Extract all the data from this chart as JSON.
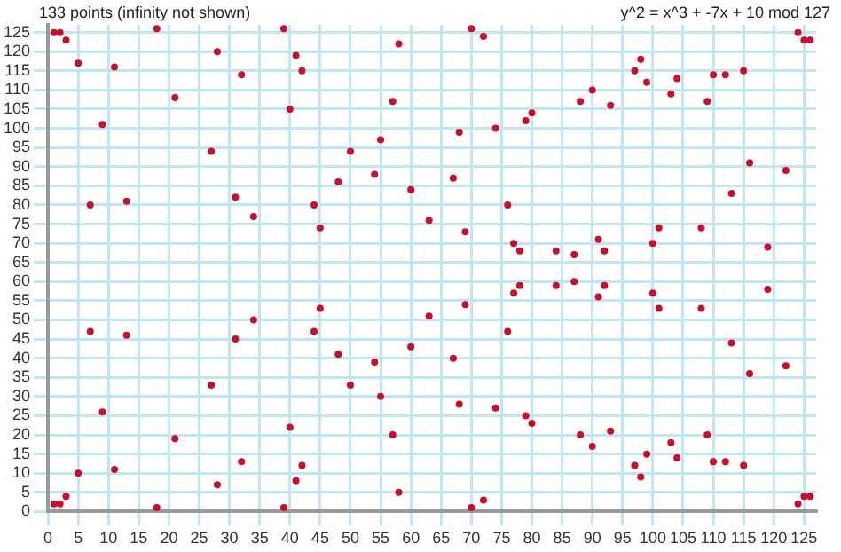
{
  "chart_data": {
    "type": "scatter",
    "title": "133 points (infinity not shown)",
    "subtitle": "y^2 = x^3 + -7x + 10 mod 127",
    "x": [
      1,
      1,
      2,
      2,
      3,
      3,
      5,
      5,
      7,
      7,
      9,
      9,
      11,
      11,
      13,
      13,
      18,
      18,
      21,
      21,
      27,
      27,
      28,
      28,
      31,
      31,
      32,
      32,
      34,
      34,
      39,
      39,
      40,
      40,
      41,
      41,
      42,
      42,
      44,
      44,
      45,
      45,
      48,
      48,
      50,
      50,
      54,
      54,
      55,
      55,
      57,
      57,
      58,
      58,
      60,
      60,
      63,
      63,
      67,
      67,
      68,
      68,
      69,
      69,
      70,
      70,
      72,
      72,
      74,
      74,
      76,
      76,
      77,
      77,
      78,
      78,
      79,
      79,
      80,
      80,
      84,
      84,
      87,
      87,
      88,
      88,
      90,
      90,
      91,
      91,
      92,
      92,
      93,
      93,
      97,
      97,
      98,
      98,
      99,
      99,
      100,
      100,
      101,
      101,
      103,
      103,
      104,
      104,
      108,
      108,
      109,
      109,
      110,
      110,
      112,
      112,
      113,
      113,
      115,
      115,
      116,
      116,
      119,
      119,
      122,
      122,
      124,
      124,
      125,
      125,
      126,
      126
    ],
    "values": [
      2,
      125,
      2,
      125,
      4,
      123,
      10,
      117,
      47,
      80,
      26,
      101,
      11,
      116,
      46,
      81,
      1,
      126,
      19,
      108,
      33,
      94,
      7,
      120,
      45,
      82,
      13,
      114,
      50,
      77,
      1,
      126,
      22,
      105,
      8,
      119,
      12,
      115,
      47,
      80,
      53,
      74,
      41,
      86,
      33,
      94,
      39,
      88,
      30,
      97,
      20,
      107,
      5,
      122,
      43,
      84,
      51,
      76,
      40,
      87,
      28,
      99,
      54,
      73,
      1,
      126,
      3,
      124,
      27,
      100,
      47,
      80,
      57,
      70,
      59,
      68,
      25,
      102,
      23,
      104,
      59,
      68,
      60,
      67,
      20,
      107,
      17,
      110,
      56,
      71,
      59,
      68,
      21,
      106,
      12,
      115,
      9,
      118,
      15,
      112,
      57,
      70,
      53,
      74,
      18,
      109,
      14,
      113,
      53,
      74,
      20,
      107,
      13,
      114,
      13,
      114,
      44,
      83,
      12,
      115,
      36,
      91,
      58,
      69,
      38,
      89,
      2,
      125,
      4,
      123,
      4,
      123
    ],
    "color": "#c8102e",
    "marker": "circle",
    "xlim": [
      0,
      127
    ],
    "ylim": [
      0,
      127
    ],
    "xticks": [
      0,
      5,
      10,
      15,
      20,
      25,
      30,
      35,
      40,
      45,
      50,
      55,
      60,
      65,
      70,
      75,
      80,
      85,
      90,
      95,
      100,
      105,
      110,
      115,
      120,
      125
    ],
    "yticks": [
      0,
      5,
      10,
      15,
      20,
      25,
      30,
      35,
      40,
      45,
      50,
      55,
      60,
      65,
      70,
      75,
      80,
      85,
      90,
      95,
      100,
      105,
      110,
      115,
      120,
      125
    ],
    "grid": true
  }
}
